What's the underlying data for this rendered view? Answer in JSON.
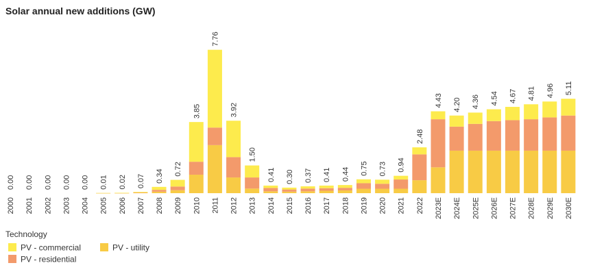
{
  "chart_data": {
    "type": "bar",
    "stacked": true,
    "title": "Solar annual new additions (GW)",
    "xlabel": "",
    "ylabel": "",
    "ylim": [
      0,
      8.6
    ],
    "grid": false,
    "categories": [
      "2000",
      "2001",
      "2002",
      "2003",
      "2004",
      "2005",
      "2006",
      "2007",
      "2008",
      "2009",
      "2010",
      "2011",
      "2012",
      "2013",
      "2014",
      "2015",
      "2016",
      "2017",
      "2018",
      "2019",
      "2020",
      "2021",
      "2022",
      "2023E",
      "2024E",
      "2025E",
      "2026E",
      "2027E",
      "2028E",
      "2029E",
      "2030E"
    ],
    "totals": [
      0.0,
      0.0,
      0.0,
      0.0,
      0.0,
      0.01,
      0.02,
      0.07,
      0.34,
      0.72,
      3.85,
      7.76,
      3.92,
      1.5,
      0.41,
      0.3,
      0.37,
      0.41,
      0.44,
      0.75,
      0.73,
      0.94,
      2.48,
      4.43,
      4.2,
      4.36,
      4.54,
      4.67,
      4.81,
      4.96,
      5.11
    ],
    "total_labels": [
      "0.00",
      "0.00",
      "0.00",
      "0.00",
      "0.00",
      "0.01",
      "0.02",
      "0.07",
      "0.34",
      "0.72",
      "3.85",
      "7.76",
      "3.92",
      "1.50",
      "0.41",
      "0.30",
      "0.37",
      "0.41",
      "0.44",
      "0.75",
      "0.73",
      "0.94",
      "2.48",
      "4.43",
      "4.20",
      "4.36",
      "4.54",
      "4.67",
      "4.81",
      "4.96",
      "5.11"
    ],
    "series": [
      {
        "name": "PV - utility",
        "color": "#F8CB45",
        "values": [
          0,
          0,
          0,
          0,
          0,
          0,
          0.01,
          0.02,
          0.08,
          0.16,
          1.0,
          2.6,
          0.85,
          0.25,
          0.1,
          0.08,
          0.1,
          0.13,
          0.15,
          0.24,
          0.24,
          0.24,
          0.7,
          1.4,
          2.3,
          2.3,
          2.3,
          2.3,
          2.3,
          2.3,
          2.3
        ]
      },
      {
        "name": "PV - residential",
        "color": "#F39A6B",
        "values": [
          0,
          0,
          0,
          0,
          0,
          0.005,
          0.005,
          0.02,
          0.1,
          0.2,
          0.7,
          0.95,
          1.1,
          0.6,
          0.18,
          0.12,
          0.15,
          0.14,
          0.14,
          0.3,
          0.27,
          0.5,
          1.4,
          2.6,
          1.3,
          1.45,
          1.6,
          1.65,
          1.7,
          1.8,
          1.9
        ]
      },
      {
        "name": "PV - commercial",
        "color": "#FDEB4D",
        "values": [
          0,
          0,
          0,
          0,
          0,
          0.005,
          0.005,
          0.03,
          0.16,
          0.36,
          2.15,
          4.21,
          1.97,
          0.65,
          0.13,
          0.1,
          0.12,
          0.14,
          0.15,
          0.21,
          0.22,
          0.2,
          0.38,
          0.43,
          0.6,
          0.61,
          0.64,
          0.72,
          0.81,
          0.86,
          0.91
        ]
      }
    ],
    "legend": {
      "title": "Technology",
      "placement": "bottom-left",
      "items": [
        {
          "label": "PV - commercial",
          "color": "#FDEB4D"
        },
        {
          "label": "PV - utility",
          "color": "#F8CB45"
        },
        {
          "label": "PV - residential",
          "color": "#F39A6B"
        }
      ]
    }
  }
}
